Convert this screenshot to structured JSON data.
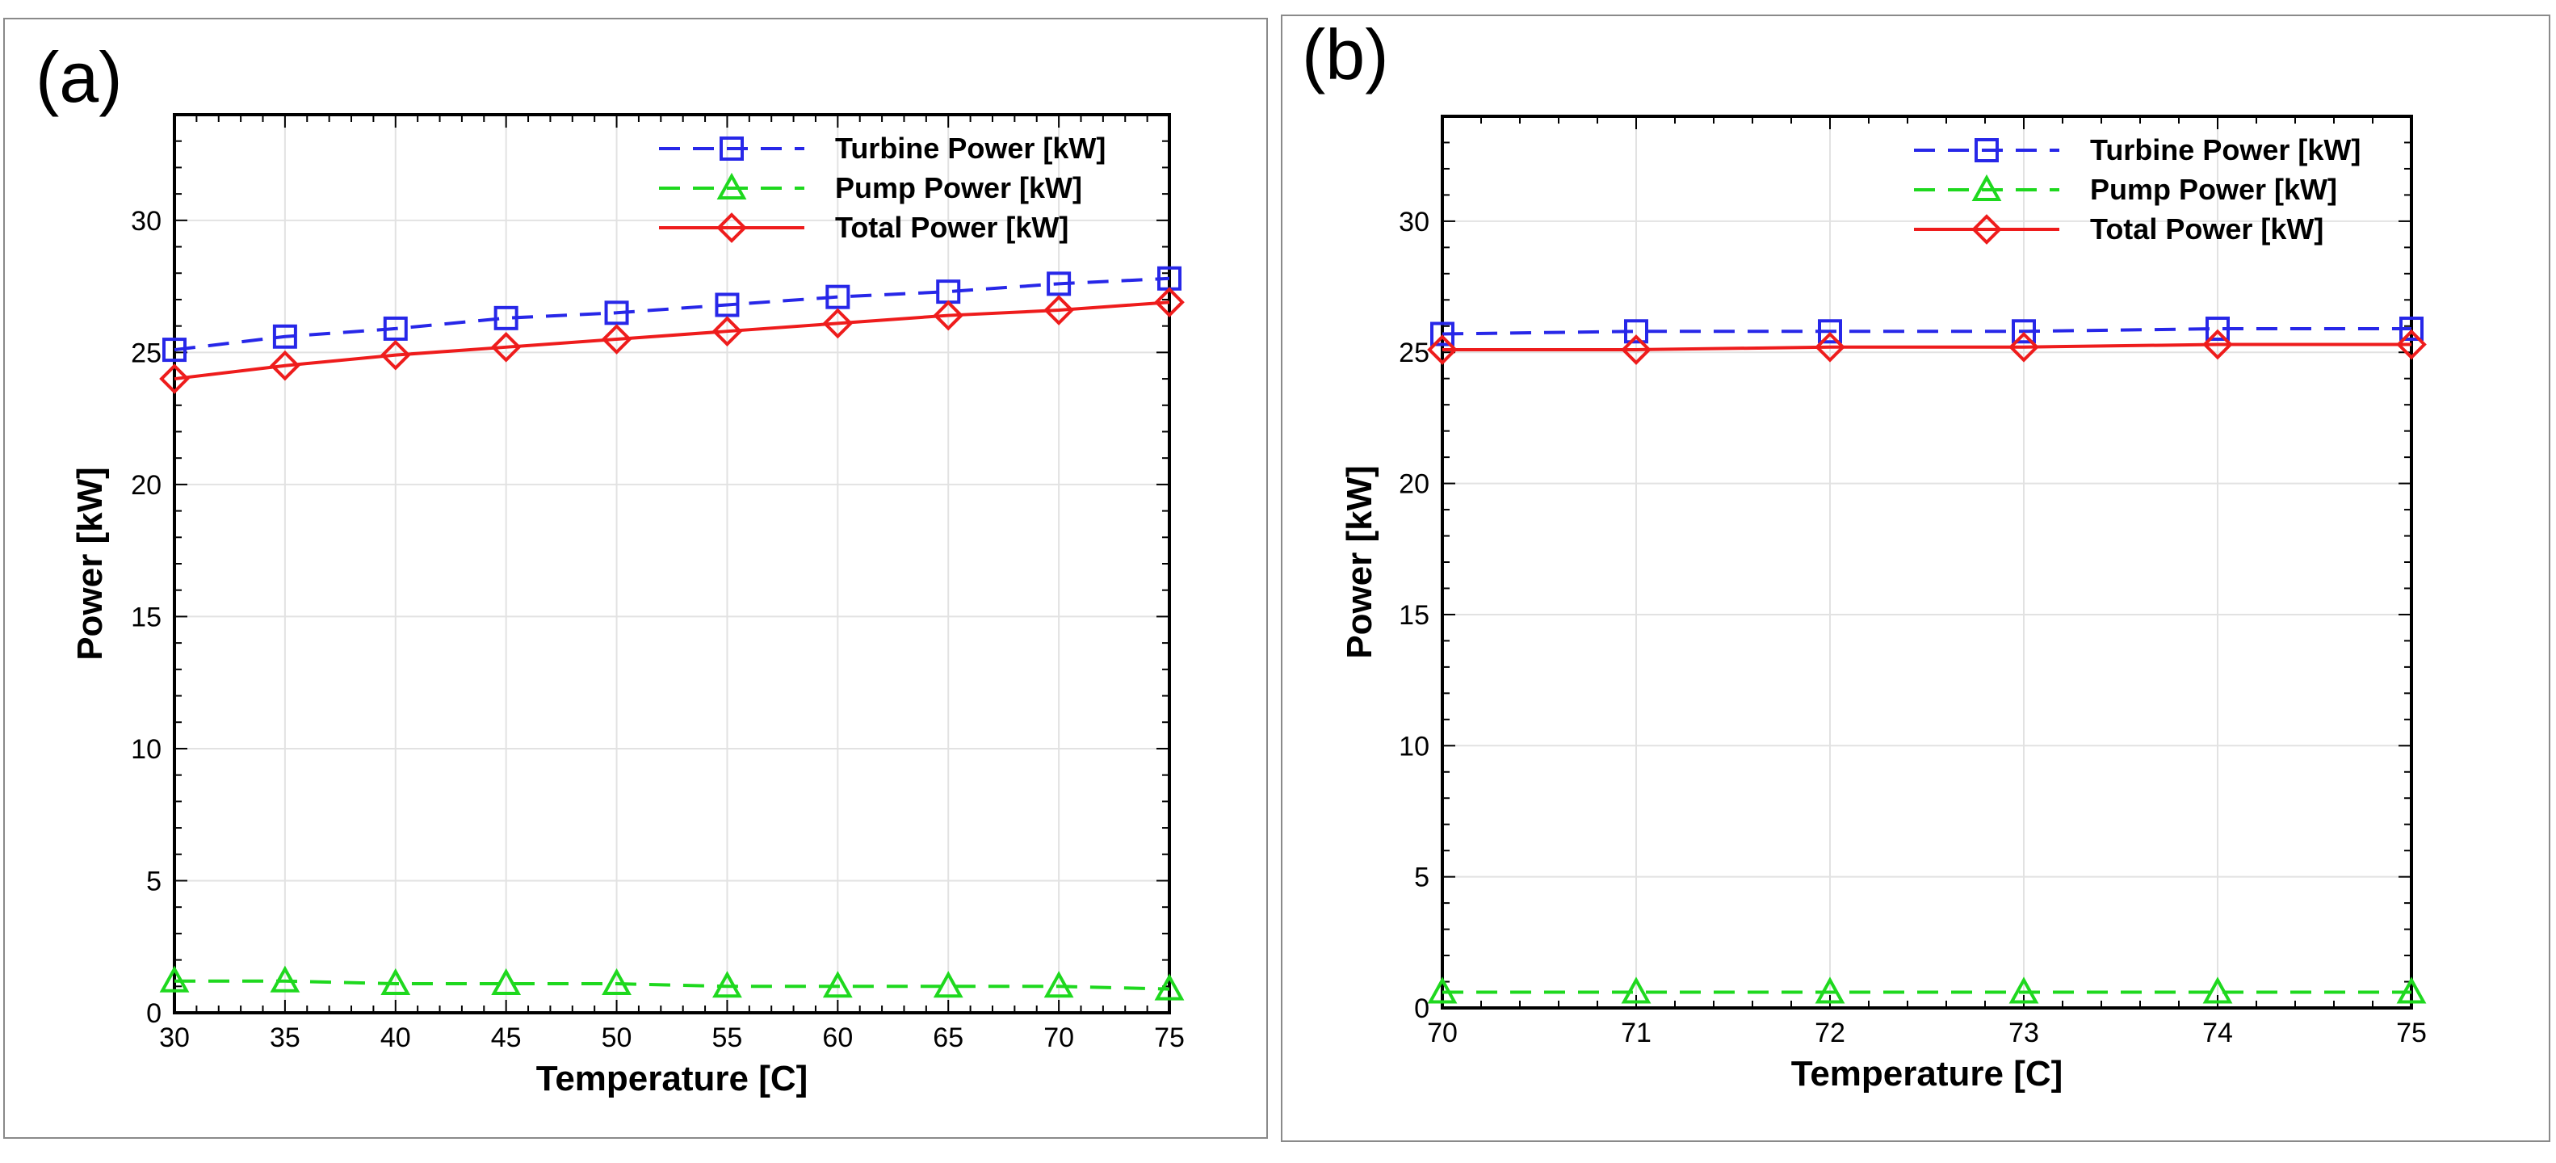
{
  "chart_data": [
    {
      "panel_label": "(a)",
      "type": "line",
      "xlabel": "Temperature [C]",
      "ylabel": "Power [kW]",
      "xlim": [
        30,
        75
      ],
      "ylim": [
        0,
        34
      ],
      "x_ticks": [
        30,
        35,
        40,
        45,
        50,
        55,
        60,
        65,
        70,
        75
      ],
      "y_ticks": [
        0,
        5,
        10,
        15,
        20,
        25,
        30
      ],
      "grid": true,
      "legend_position": "top-right",
      "x": [
        30,
        35,
        40,
        45,
        50,
        55,
        60,
        65,
        70,
        75
      ],
      "series": [
        {
          "name": "Turbine Power [kW]",
          "color": "#2727e8",
          "line": "dashed",
          "marker": "square",
          "values": [
            25.1,
            25.6,
            25.9,
            26.3,
            26.5,
            26.8,
            27.1,
            27.3,
            27.6,
            27.8
          ]
        },
        {
          "name": "Pump Power [kW]",
          "color": "#1ed81e",
          "line": "dashed",
          "marker": "triangle",
          "values": [
            1.2,
            1.2,
            1.1,
            1.1,
            1.1,
            1.0,
            1.0,
            1.0,
            1.0,
            0.9
          ]
        },
        {
          "name": "Total Power [kW]",
          "color": "#ee1c1c",
          "line": "solid",
          "marker": "diamond",
          "values": [
            24.0,
            24.5,
            24.9,
            25.2,
            25.5,
            25.8,
            26.1,
            26.4,
            26.6,
            26.9
          ]
        }
      ]
    },
    {
      "panel_label": "(b)",
      "type": "line",
      "xlabel": "Temperature [C]",
      "ylabel": "Power [kW]",
      "xlim": [
        70,
        75
      ],
      "ylim": [
        0,
        34
      ],
      "x_ticks": [
        70,
        71,
        72,
        73,
        74,
        75
      ],
      "y_ticks": [
        0,
        5,
        10,
        15,
        20,
        25,
        30
      ],
      "grid": true,
      "legend_position": "top-right",
      "x": [
        70,
        71,
        72,
        73,
        74,
        75
      ],
      "series": [
        {
          "name": "Turbine Power [kW]",
          "color": "#2727e8",
          "line": "dashed",
          "marker": "square",
          "values": [
            25.7,
            25.8,
            25.8,
            25.8,
            25.9,
            25.9
          ]
        },
        {
          "name": "Pump Power [kW]",
          "color": "#1ed81e",
          "line": "dashed",
          "marker": "triangle",
          "values": [
            0.6,
            0.6,
            0.6,
            0.6,
            0.6,
            0.6
          ]
        },
        {
          "name": "Total Power [kW]",
          "color": "#ee1c1c",
          "line": "solid",
          "marker": "diamond",
          "values": [
            25.1,
            25.1,
            25.2,
            25.2,
            25.3,
            25.3
          ]
        }
      ]
    }
  ]
}
